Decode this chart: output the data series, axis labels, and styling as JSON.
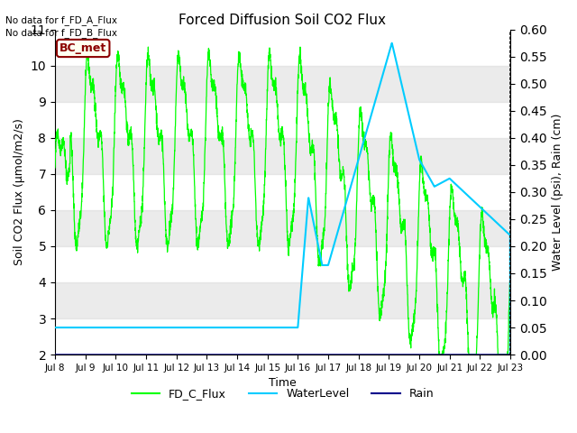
{
  "title": "Forced Diffusion Soil CO2 Flux",
  "xlabel": "Time",
  "ylabel_left": "Soil CO2 Flux (μmol/m2/s)",
  "ylabel_right": "Water Level (psi), Rain (cm)",
  "no_data_text1": "No data for f_FD_A_Flux",
  "no_data_text2": "No data for f_FD_B_Flux",
  "bc_met_label": "BC_met",
  "ylim_left": [
    2.0,
    11.0
  ],
  "ylim_right": [
    0.0,
    0.6
  ],
  "yticks_left": [
    2.0,
    3.0,
    4.0,
    5.0,
    6.0,
    7.0,
    8.0,
    9.0,
    10.0,
    11.0
  ],
  "yticks_right": [
    0.0,
    0.05,
    0.1,
    0.15,
    0.2,
    0.25,
    0.3,
    0.35,
    0.4,
    0.45,
    0.5,
    0.55,
    0.6
  ],
  "legend_entries": [
    "FD_C_Flux",
    "WaterLevel",
    "Rain"
  ],
  "green_color": "#00ff00",
  "cyan_color": "#00ccff",
  "blue_color": "#00008b",
  "bg_band_color": "#d3d3d3",
  "bg_band_alpha": 0.45,
  "bc_met_facecolor": "#fffff0",
  "bc_met_edgecolor": "#8b0000",
  "bc_met_textcolor": "#8b0000",
  "xlim": [
    0,
    15
  ],
  "xtick_positions": [
    0,
    1,
    2,
    3,
    4,
    5,
    6,
    7,
    8,
    9,
    10,
    11,
    12,
    13,
    14,
    15
  ],
  "xtick_labels": [
    "Jul 8",
    "Jul 9",
    "Jul 10",
    "Jul 11",
    "Jul 12",
    "Jul 13",
    "Jul 14",
    "Jul 15",
    "Jul 16",
    "Jul 17",
    "Jul 18",
    "Jul 19",
    "Jul 20",
    "Jul 21",
    "Jul 22",
    "Jul 23"
  ]
}
